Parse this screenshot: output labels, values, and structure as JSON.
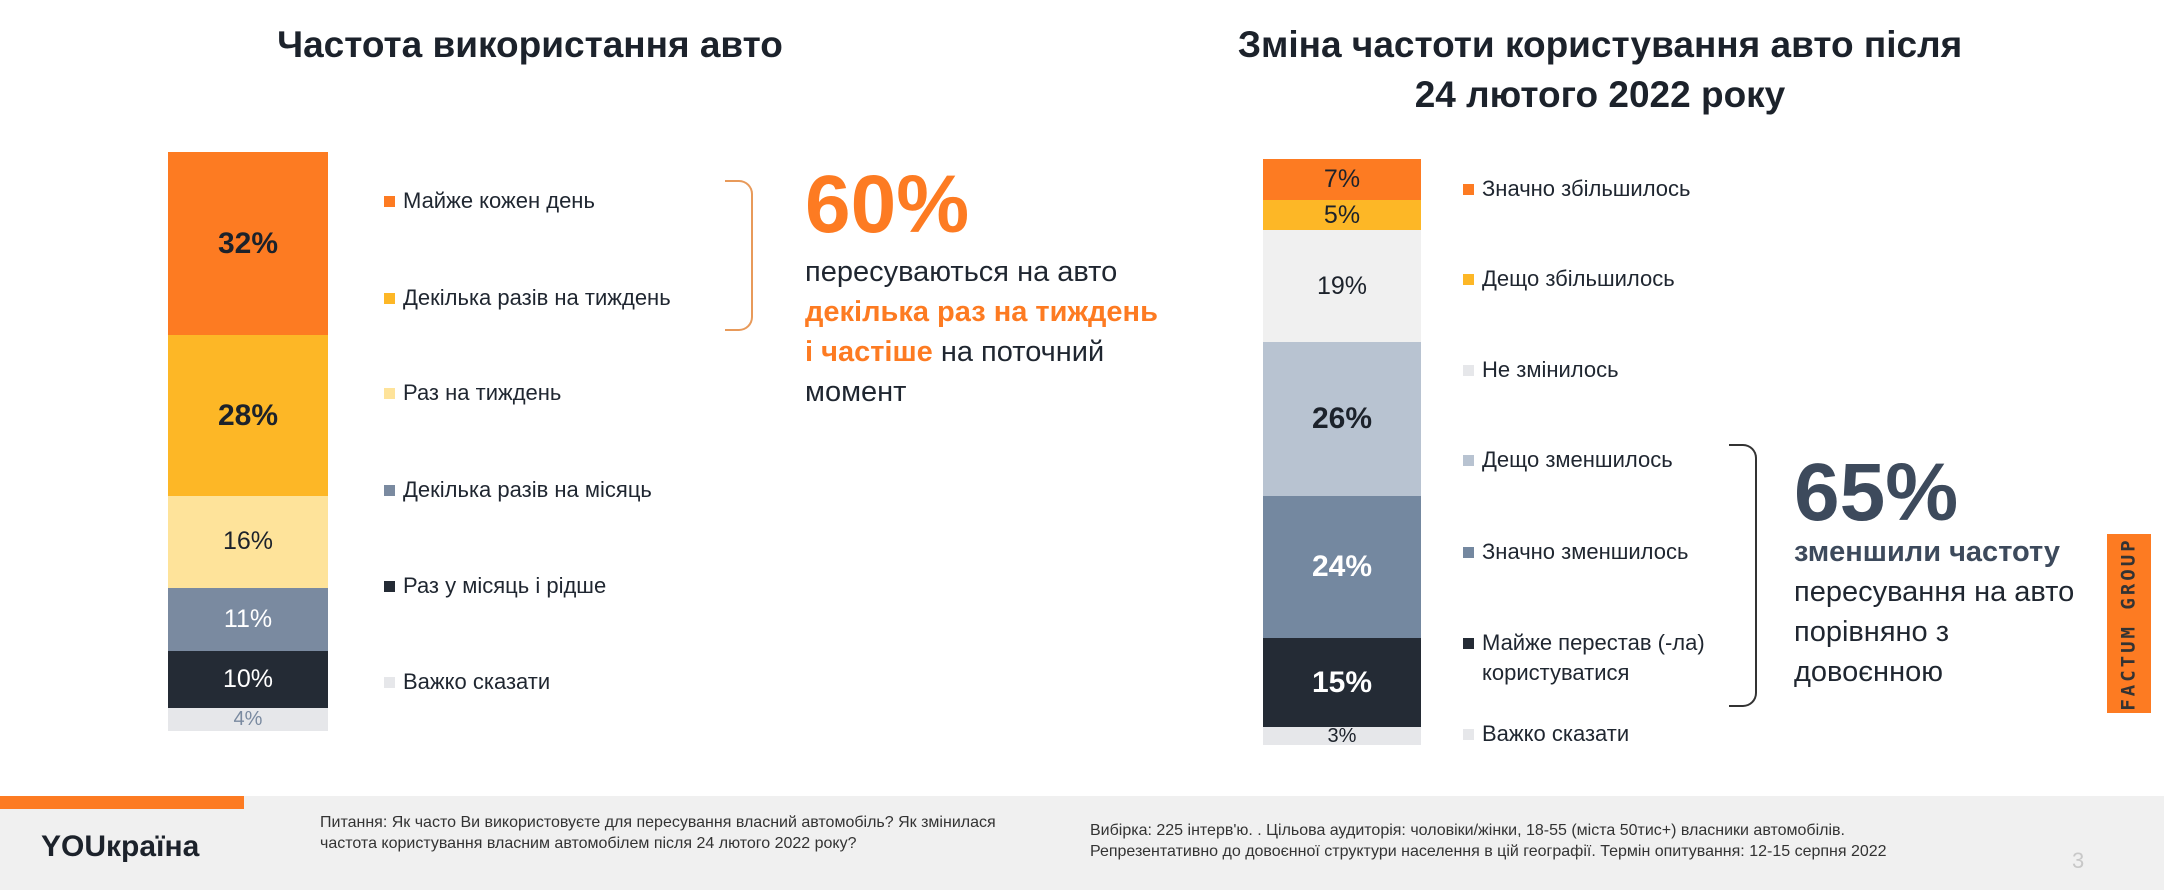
{
  "chart_data": [
    {
      "type": "bar",
      "stacked": true,
      "title": "Частота використання авто",
      "categories": [
        "Майже кожен день",
        "Декілька разів на тиждень",
        "Раз на тиждень",
        "Декілька разів на місяць",
        "Раз у місяць і рідше",
        "Важко сказати"
      ],
      "values": [
        32,
        28,
        16,
        11,
        10,
        4
      ],
      "labels": [
        "32%",
        "28%",
        "16%",
        "11%",
        "10%",
        "4%"
      ],
      "colors": [
        "#fd7b22",
        "#fdb726",
        "#fee39a",
        "#7a8aa0",
        "#242b35",
        "#e6e7ea"
      ],
      "label_colors": [
        "#1c222b",
        "#1c222b",
        "#1c222b",
        "#ffffff",
        "#ffffff",
        "#7a8aa0"
      ],
      "bold": [
        true,
        true,
        false,
        false,
        false,
        false
      ]
    },
    {
      "type": "bar",
      "stacked": true,
      "title": "Зміна частоти користування авто після 24 лютого 2022 року",
      "title_lines": [
        "Зміна частоти користування авто після",
        "24 лютого 2022 року"
      ],
      "categories": [
        "Значно збільшилось",
        "Дещо збільшилось",
        "Не змінилось",
        "Дещо зменшилось",
        "Значно зменшилось",
        "Майже перестав  (-ла) користуватися",
        "Важко сказати"
      ],
      "values": [
        7,
        5,
        19,
        26,
        24,
        15,
        3
      ],
      "labels": [
        "7%",
        "5%",
        "19%",
        "26%",
        "24%",
        "15%",
        "3%"
      ],
      "colors": [
        "#fd7b22",
        "#fdb726",
        "#f0f0f0",
        "#b8c3d1",
        "#7488a0",
        "#242b35",
        "#e6e7ea"
      ],
      "label_colors": [
        "#1c222b",
        "#1c222b",
        "#1c222b",
        "#1c222b",
        "#ffffff",
        "#ffffff",
        "#1c222b"
      ],
      "bold": [
        false,
        false,
        false,
        true,
        true,
        true,
        false
      ]
    }
  ],
  "callout1": {
    "value": "60%",
    "text_before": "пересуваються на авто ",
    "highlight": "декілька раз на тиждень і частіше",
    "text_after": " на поточний момент",
    "color": "#fd7b22"
  },
  "callout2": {
    "value": "65%",
    "highlight": "зменшили частоту",
    "text_after": "пересування на авто порівняно з довоєнною",
    "color": "#3d4a5c"
  },
  "footer": {
    "logo": "YOUкраїна",
    "question": "Питання:  Як часто Ви використовуєте для пересування власний автомобіль? Як змінилася частота користування власним автомобілем після 24 лютого 2022 року?",
    "sample": "Вибірка: 225 інтерв'ю. . Цільова аудиторія: чоловіки/жінки, 18-55 (міста 50тис+) власники автомобілів.",
    "sample2": "Репрезентативно до довоєнної структури населення в цій географії. Термін опитування: 12-15 серпня 2022",
    "page": "3",
    "brand": "FACTUM GROUP"
  }
}
